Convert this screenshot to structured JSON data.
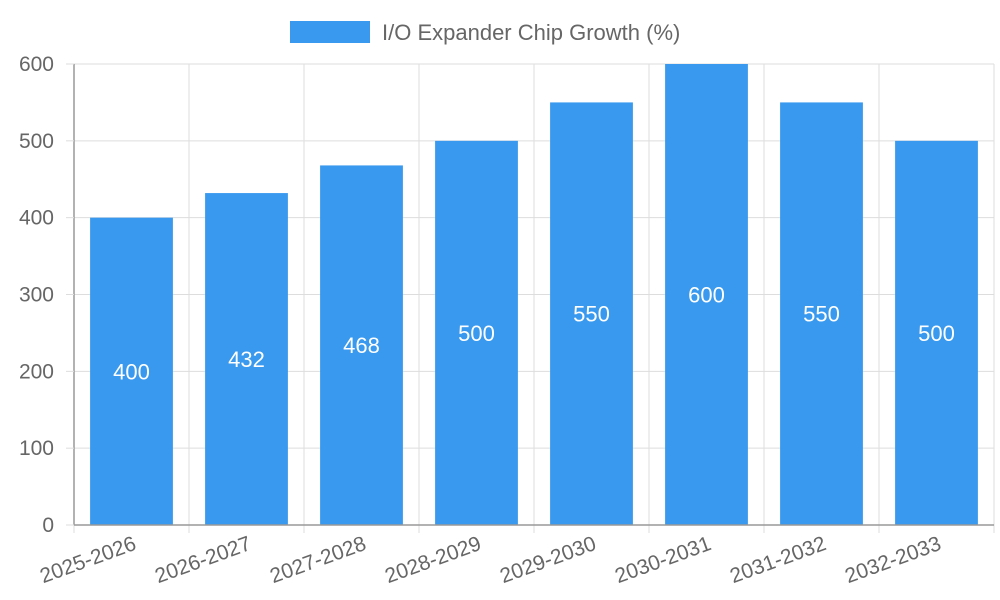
{
  "chart_data": {
    "type": "bar",
    "categories": [
      "2025-2026",
      "2026-2027",
      "2027-2028",
      "2028-2029",
      "2029-2030",
      "2030-2031",
      "2031-2032",
      "2032-2033"
    ],
    "series": [
      {
        "name": "I/O Expander Chip Growth (%)",
        "values": [
          400,
          432,
          468,
          500,
          550,
          600,
          550,
          500
        ]
      }
    ],
    "title": "",
    "xlabel": "",
    "ylabel": "",
    "ylim": [
      0,
      600
    ],
    "yticks": [
      0,
      100,
      200,
      300,
      400,
      500,
      600
    ],
    "grid": true,
    "legend": "top",
    "data_labels": true
  },
  "colors": {
    "bar": "#3899ef",
    "grid": "#dddddd",
    "axis": "#999999",
    "text": "#666666",
    "label": "#ffffff"
  }
}
